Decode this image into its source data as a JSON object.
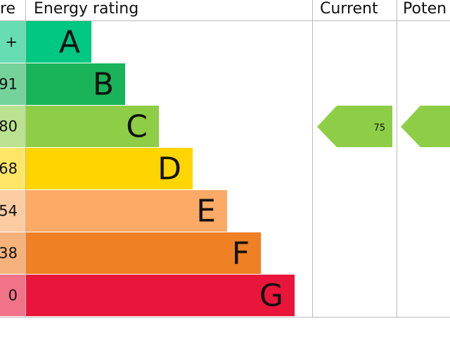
{
  "header": {
    "score": "re",
    "rating": "Energy rating",
    "current": "Current",
    "potential": "Poten"
  },
  "bands": [
    {
      "score": "+",
      "letter": "A"
    },
    {
      "score": "91",
      "letter": "B"
    },
    {
      "score": "80",
      "letter": "C"
    },
    {
      "score": "68",
      "letter": "D"
    },
    {
      "score": "54",
      "letter": "E"
    },
    {
      "score": "38",
      "letter": "F"
    },
    {
      "score": "0",
      "letter": "G"
    }
  ],
  "current": {
    "value": "75"
  }
}
